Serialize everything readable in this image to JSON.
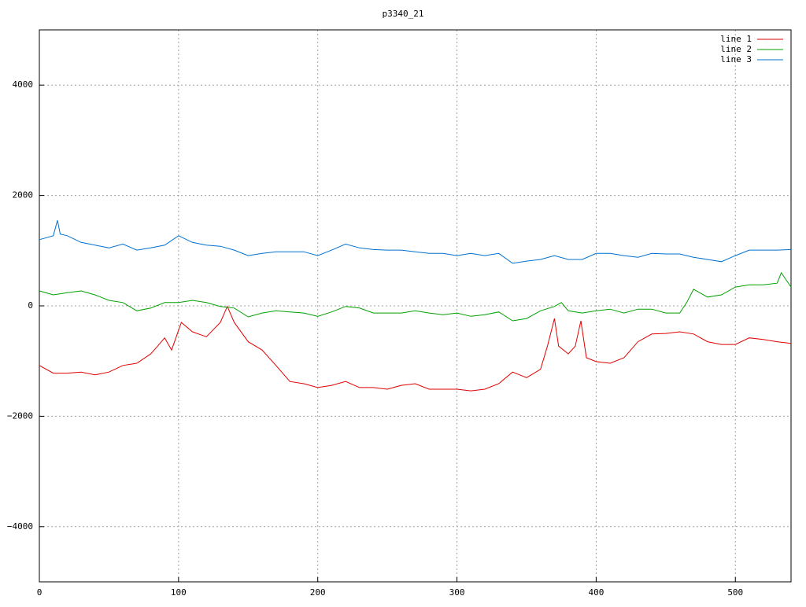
{
  "chart_data": {
    "type": "line",
    "title": "p3340_21",
    "xlim": [
      0,
      540
    ],
    "xticks": [
      0,
      100,
      200,
      300,
      400,
      500
    ],
    "ylim": [
      -5000,
      5000
    ],
    "yticks": [
      {
        "value": -4000,
        "label": "−4000"
      },
      {
        "value": -2000,
        "label": "−2000"
      },
      0,
      2000,
      4000
    ],
    "grid": true,
    "legend": "top-right",
    "series": [
      {
        "name": "line 1",
        "color": "#e00000",
        "x": [
          0,
          10,
          20,
          30,
          40,
          50,
          60,
          70,
          80,
          85,
          90,
          95,
          100,
          102,
          110,
          120,
          130,
          135,
          140,
          150,
          160,
          170,
          180,
          190,
          200,
          210,
          220,
          230,
          240,
          250,
          260,
          270,
          280,
          290,
          300,
          310,
          320,
          330,
          340,
          350,
          360,
          365,
          370,
          373,
          380,
          385,
          389,
          393,
          400,
          410,
          420,
          430,
          440,
          450,
          460,
          470,
          480,
          490,
          500,
          510,
          520,
          530,
          540
        ],
        "values": [
          -1080,
          -1220,
          -1220,
          -1200,
          -1250,
          -1200,
          -1080,
          -1040,
          -870,
          -730,
          -580,
          -800,
          -440,
          -300,
          -470,
          -560,
          -300,
          -10,
          -300,
          -650,
          -800,
          -1080,
          -1370,
          -1410,
          -1480,
          -1440,
          -1370,
          -1480,
          -1480,
          -1510,
          -1440,
          -1410,
          -1510,
          -1510,
          -1510,
          -1540,
          -1510,
          -1410,
          -1200,
          -1300,
          -1150,
          -730,
          -230,
          -730,
          -870,
          -730,
          -270,
          -940,
          -1010,
          -1040,
          -940,
          -650,
          -510,
          -500,
          -470,
          -510,
          -650,
          -700,
          -700,
          -580,
          -610,
          -650,
          -680
        ]
      },
      {
        "name": "line 2",
        "color": "#00a000",
        "x": [
          0,
          10,
          20,
          30,
          40,
          50,
          60,
          70,
          80,
          90,
          100,
          110,
          120,
          130,
          140,
          150,
          160,
          170,
          180,
          190,
          200,
          210,
          220,
          230,
          240,
          250,
          260,
          270,
          280,
          290,
          300,
          310,
          320,
          330,
          340,
          350,
          360,
          370,
          375,
          380,
          390,
          400,
          410,
          420,
          430,
          440,
          450,
          460,
          465,
          470,
          480,
          490,
          500,
          510,
          520,
          530,
          533,
          540
        ],
        "values": [
          270,
          200,
          240,
          270,
          200,
          100,
          60,
          -90,
          -40,
          60,
          60,
          100,
          60,
          -10,
          -40,
          -200,
          -130,
          -90,
          -110,
          -130,
          -190,
          -110,
          -10,
          -40,
          -130,
          -130,
          -130,
          -90,
          -130,
          -160,
          -130,
          -190,
          -160,
          -110,
          -270,
          -230,
          -90,
          -10,
          60,
          -90,
          -130,
          -90,
          -60,
          -130,
          -60,
          -60,
          -130,
          -130,
          60,
          300,
          160,
          200,
          340,
          380,
          380,
          410,
          600,
          340
        ]
      },
      {
        "name": "line 3",
        "color": "#0070d0",
        "x": [
          0,
          10,
          13,
          15,
          20,
          30,
          40,
          50,
          60,
          70,
          80,
          90,
          100,
          110,
          120,
          130,
          140,
          150,
          160,
          170,
          180,
          190,
          200,
          210,
          220,
          230,
          240,
          250,
          260,
          270,
          280,
          290,
          300,
          310,
          320,
          330,
          340,
          350,
          360,
          370,
          380,
          390,
          400,
          410,
          420,
          430,
          440,
          450,
          460,
          470,
          480,
          490,
          500,
          510,
          520,
          530,
          540
        ],
        "values": [
          1200,
          1270,
          1550,
          1300,
          1270,
          1150,
          1100,
          1050,
          1120,
          1010,
          1050,
          1100,
          1270,
          1150,
          1100,
          1080,
          1010,
          910,
          950,
          980,
          980,
          980,
          910,
          1010,
          1120,
          1050,
          1020,
          1010,
          1010,
          980,
          950,
          950,
          910,
          950,
          910,
          950,
          770,
          810,
          840,
          910,
          840,
          840,
          950,
          950,
          910,
          880,
          950,
          940,
          940,
          880,
          840,
          800,
          910,
          1010,
          1010,
          1010,
          1020
        ]
      }
    ]
  }
}
